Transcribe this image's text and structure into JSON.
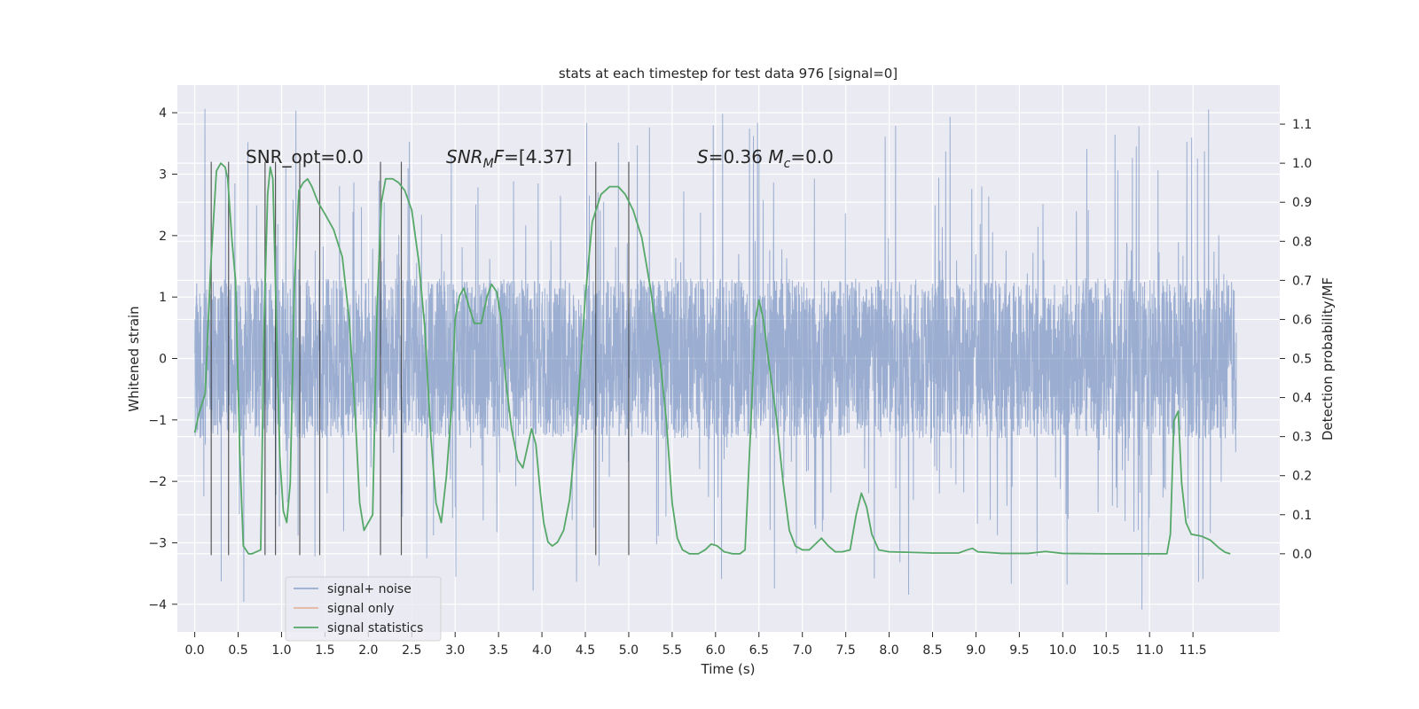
{
  "chart_data": {
    "type": "line",
    "title": "stats at each timestep for test data 976 [signal=0]",
    "xlabel": "Time (s)",
    "ylabel_left": "Whitened strain",
    "ylabel_right": "Detection probability/MF",
    "xlim": [
      -0.2,
      12.5
    ],
    "ylim_left": [
      -4.45,
      4.45
    ],
    "ylim_right": [
      -0.2,
      1.2
    ],
    "xticks": [
      "0.0",
      "0.5",
      "1.0",
      "1.5",
      "2.0",
      "2.5",
      "3.0",
      "3.5",
      "4.0",
      "4.5",
      "5.0",
      "5.5",
      "6.0",
      "6.5",
      "7.0",
      "7.5",
      "8.0",
      "8.5",
      "9.0",
      "9.5",
      "10.0",
      "10.5",
      "11.0",
      "11.5"
    ],
    "yticks_left": [
      "4",
      "3",
      "2",
      "1",
      "0",
      "−1",
      "−2",
      "−3",
      "−4"
    ],
    "yticks_right": [
      "1.1",
      "1.0",
      "0.9",
      "0.8",
      "0.7",
      "0.6",
      "0.5",
      "0.4",
      "0.3",
      "0.2",
      "0.1",
      "0.0"
    ],
    "grid": true,
    "legend_position": "lower-left",
    "colors": {
      "noise": "#4c72b0",
      "signal": "#dd8452",
      "stats": "#55a868",
      "background": "#eaeaf2",
      "vline": "#333333"
    },
    "annotations": [
      {
        "text": "SNR_opt=0.0",
        "x": 0.2,
        "y_right": 1.0
      },
      {
        "text": "SNR_MF=[4.37]",
        "x": 2.6,
        "y_right": 1.0
      },
      {
        "text": "S=0.36   M_c=0.0",
        "x": 5.6,
        "y_right": 1.0
      }
    ],
    "vertical_lines": {
      "x": [
        0.19,
        0.39,
        0.81,
        0.93,
        1.21,
        1.44,
        2.14,
        2.38,
        4.62,
        5.0
      ],
      "y_range_left": [
        -3.2,
        3.2
      ]
    },
    "series": [
      {
        "name": "signal+ noise",
        "axis": "left",
        "description": "dense whitened strain noise, bulk within approx [-1.3, 1.3], spikes up to 4.1 and down to -4.1",
        "x_range": [
          0.0,
          12.0
        ],
        "typical_amplitude": 1.3,
        "max": 4.1,
        "min": -4.1
      },
      {
        "name": "signal only",
        "axis": "left",
        "values": []
      },
      {
        "name": "signal statistics",
        "axis": "right",
        "points": [
          [
            0.0,
            0.31
          ],
          [
            0.05,
            0.36
          ],
          [
            0.12,
            0.41
          ],
          [
            0.18,
            0.72
          ],
          [
            0.25,
            0.98
          ],
          [
            0.3,
            1.0
          ],
          [
            0.35,
            0.99
          ],
          [
            0.38,
            0.96
          ],
          [
            0.43,
            0.8
          ],
          [
            0.47,
            0.7
          ],
          [
            0.52,
            0.25
          ],
          [
            0.56,
            0.02
          ],
          [
            0.62,
            0.0
          ],
          [
            0.66,
            0.0
          ],
          [
            0.76,
            0.01
          ],
          [
            0.8,
            0.6
          ],
          [
            0.84,
            0.92
          ],
          [
            0.87,
            0.99
          ],
          [
            0.9,
            0.96
          ],
          [
            0.94,
            0.6
          ],
          [
            0.98,
            0.25
          ],
          [
            1.02,
            0.11
          ],
          [
            1.06,
            0.08
          ],
          [
            1.1,
            0.18
          ],
          [
            1.15,
            0.7
          ],
          [
            1.2,
            0.93
          ],
          [
            1.25,
            0.95
          ],
          [
            1.3,
            0.96
          ],
          [
            1.35,
            0.94
          ],
          [
            1.42,
            0.9
          ],
          [
            1.5,
            0.87
          ],
          [
            1.6,
            0.83
          ],
          [
            1.7,
            0.76
          ],
          [
            1.78,
            0.6
          ],
          [
            1.85,
            0.35
          ],
          [
            1.9,
            0.13
          ],
          [
            1.95,
            0.06
          ],
          [
            2.0,
            0.08
          ],
          [
            2.05,
            0.1
          ],
          [
            2.1,
            0.63
          ],
          [
            2.15,
            0.9
          ],
          [
            2.2,
            0.96
          ],
          [
            2.28,
            0.96
          ],
          [
            2.35,
            0.95
          ],
          [
            2.42,
            0.93
          ],
          [
            2.5,
            0.88
          ],
          [
            2.58,
            0.75
          ],
          [
            2.65,
            0.58
          ],
          [
            2.72,
            0.3
          ],
          [
            2.78,
            0.13
          ],
          [
            2.84,
            0.08
          ],
          [
            2.9,
            0.2
          ],
          [
            2.96,
            0.38
          ],
          [
            3.0,
            0.6
          ],
          [
            3.05,
            0.66
          ],
          [
            3.1,
            0.68
          ],
          [
            3.15,
            0.64
          ],
          [
            3.22,
            0.59
          ],
          [
            3.3,
            0.59
          ],
          [
            3.37,
            0.66
          ],
          [
            3.42,
            0.69
          ],
          [
            3.48,
            0.67
          ],
          [
            3.53,
            0.6
          ],
          [
            3.58,
            0.45
          ],
          [
            3.65,
            0.32
          ],
          [
            3.72,
            0.24
          ],
          [
            3.78,
            0.22
          ],
          [
            3.83,
            0.27
          ],
          [
            3.88,
            0.32
          ],
          [
            3.93,
            0.28
          ],
          [
            3.98,
            0.16
          ],
          [
            4.02,
            0.08
          ],
          [
            4.07,
            0.03
          ],
          [
            4.12,
            0.02
          ],
          [
            4.18,
            0.03
          ],
          [
            4.25,
            0.06
          ],
          [
            4.32,
            0.14
          ],
          [
            4.4,
            0.33
          ],
          [
            4.5,
            0.66
          ],
          [
            4.58,
            0.85
          ],
          [
            4.68,
            0.92
          ],
          [
            4.78,
            0.94
          ],
          [
            4.88,
            0.94
          ],
          [
            4.96,
            0.92
          ],
          [
            5.05,
            0.88
          ],
          [
            5.15,
            0.81
          ],
          [
            5.25,
            0.68
          ],
          [
            5.35,
            0.52
          ],
          [
            5.43,
            0.35
          ],
          [
            5.5,
            0.13
          ],
          [
            5.56,
            0.04
          ],
          [
            5.62,
            0.01
          ],
          [
            5.7,
            0.0
          ],
          [
            5.8,
            0.0
          ],
          [
            5.88,
            0.01
          ],
          [
            5.95,
            0.025
          ],
          [
            6.02,
            0.02
          ],
          [
            6.1,
            0.005
          ],
          [
            6.2,
            0.0
          ],
          [
            6.28,
            0.0
          ],
          [
            6.34,
            0.01
          ],
          [
            6.4,
            0.3
          ],
          [
            6.46,
            0.6
          ],
          [
            6.5,
            0.65
          ],
          [
            6.55,
            0.6
          ],
          [
            6.62,
            0.48
          ],
          [
            6.7,
            0.35
          ],
          [
            6.78,
            0.18
          ],
          [
            6.85,
            0.06
          ],
          [
            6.92,
            0.02
          ],
          [
            7.0,
            0.01
          ],
          [
            7.08,
            0.01
          ],
          [
            7.15,
            0.025
          ],
          [
            7.22,
            0.04
          ],
          [
            7.3,
            0.02
          ],
          [
            7.38,
            0.005
          ],
          [
            7.46,
            0.005
          ],
          [
            7.55,
            0.01
          ],
          [
            7.62,
            0.1
          ],
          [
            7.68,
            0.155
          ],
          [
            7.74,
            0.12
          ],
          [
            7.8,
            0.05
          ],
          [
            7.88,
            0.01
          ],
          [
            8.0,
            0.005
          ],
          [
            8.2,
            0.004
          ],
          [
            8.5,
            0.002
          ],
          [
            8.8,
            0.002
          ],
          [
            8.9,
            0.01
          ],
          [
            8.96,
            0.014
          ],
          [
            9.02,
            0.005
          ],
          [
            9.3,
            0.001
          ],
          [
            9.6,
            0.001
          ],
          [
            9.8,
            0.006
          ],
          [
            10.0,
            0.001
          ],
          [
            10.5,
            0.0
          ],
          [
            11.0,
            0.0
          ],
          [
            11.2,
            0.0
          ],
          [
            11.24,
            0.05
          ],
          [
            11.28,
            0.34
          ],
          [
            11.33,
            0.365
          ],
          [
            11.37,
            0.18
          ],
          [
            11.42,
            0.08
          ],
          [
            11.48,
            0.05
          ],
          [
            11.6,
            0.045
          ],
          [
            11.7,
            0.035
          ],
          [
            11.8,
            0.015
          ],
          [
            11.87,
            0.004
          ],
          [
            11.93,
            0.0
          ]
        ]
      }
    ]
  }
}
